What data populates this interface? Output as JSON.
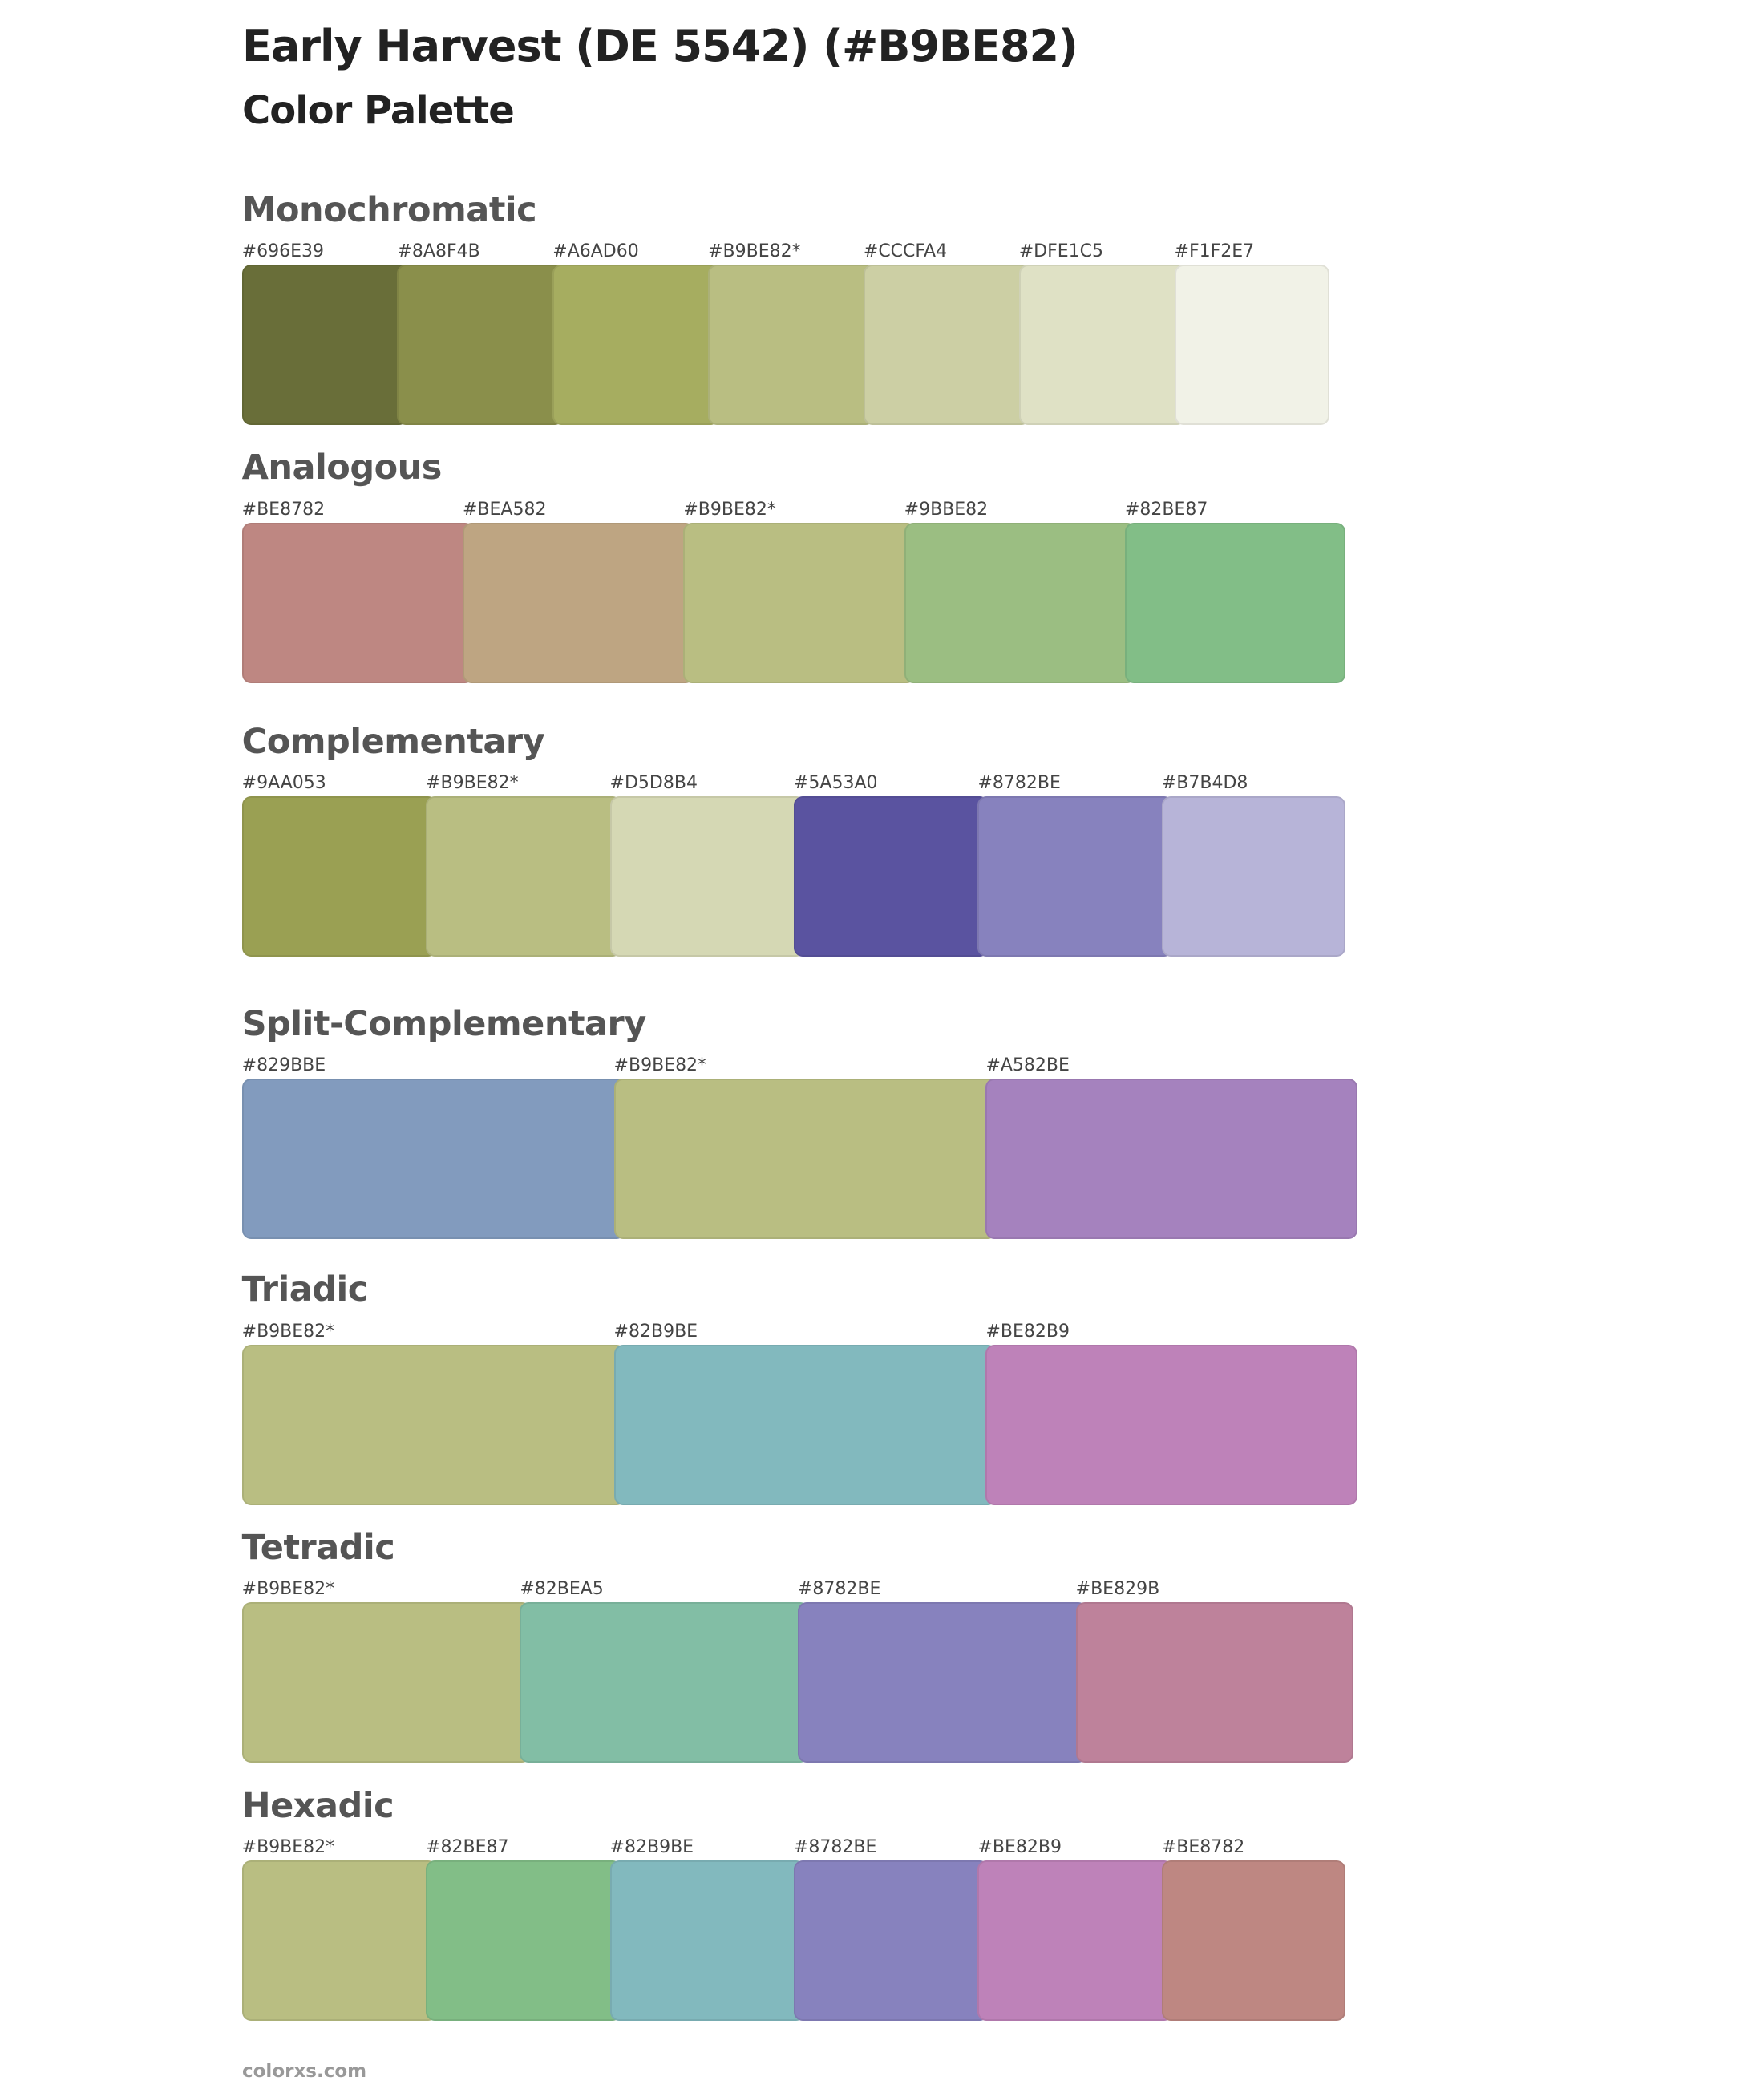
{
  "header": {
    "title": "Early Harvest (DE 5542) (#B9BE82)",
    "subtitle": "Color Palette"
  },
  "sections": [
    {
      "name": "Monochromatic",
      "swatches": [
        {
          "label": "#696E39",
          "color": "#696E39"
        },
        {
          "label": "#8A8F4B",
          "color": "#8A8F4B"
        },
        {
          "label": "#A6AD60",
          "color": "#A6AD60"
        },
        {
          "label": "#B9BE82*",
          "color": "#B9BE82"
        },
        {
          "label": "#CCCFA4",
          "color": "#CCCFA4"
        },
        {
          "label": "#DFE1C5",
          "color": "#DFE1C5"
        },
        {
          "label": "#F1F2E7",
          "color": "#F1F2E7"
        }
      ]
    },
    {
      "name": "Analogous",
      "swatches": [
        {
          "label": "#BE8782",
          "color": "#BE8782"
        },
        {
          "label": "#BEA582",
          "color": "#BEA582"
        },
        {
          "label": "#B9BE82*",
          "color": "#B9BE82"
        },
        {
          "label": "#9BBE82",
          "color": "#9BBE82"
        },
        {
          "label": "#82BE87",
          "color": "#82BE87"
        }
      ]
    },
    {
      "name": "Complementary",
      "swatches": [
        {
          "label": "#9AA053",
          "color": "#9AA053"
        },
        {
          "label": "#B9BE82*",
          "color": "#B9BE82"
        },
        {
          "label": "#D5D8B4",
          "color": "#D5D8B4"
        },
        {
          "label": "#5A53A0",
          "color": "#5A53A0"
        },
        {
          "label": "#8782BE",
          "color": "#8782BE"
        },
        {
          "label": "#B7B4D8",
          "color": "#B7B4D8"
        }
      ]
    },
    {
      "name": "Split-Complementary",
      "swatches": [
        {
          "label": "#829BBE",
          "color": "#829BBE"
        },
        {
          "label": "#B9BE82*",
          "color": "#B9BE82"
        },
        {
          "label": "#A582BE",
          "color": "#A582BE"
        }
      ]
    },
    {
      "name": "Triadic",
      "swatches": [
        {
          "label": "#B9BE82*",
          "color": "#B9BE82"
        },
        {
          "label": "#82B9BE",
          "color": "#82B9BE"
        },
        {
          "label": "#BE82B9",
          "color": "#BE82B9"
        }
      ]
    },
    {
      "name": "Tetradic",
      "swatches": [
        {
          "label": "#B9BE82*",
          "color": "#B9BE82"
        },
        {
          "label": "#82BEA5",
          "color": "#82BEA5"
        },
        {
          "label": "#8782BE",
          "color": "#8782BE"
        },
        {
          "label": "#BE829B",
          "color": "#BE829B"
        }
      ]
    },
    {
      "name": "Hexadic",
      "swatches": [
        {
          "label": "#B9BE82*",
          "color": "#B9BE82"
        },
        {
          "label": "#82BE87",
          "color": "#82BE87"
        },
        {
          "label": "#82B9BE",
          "color": "#82B9BE"
        },
        {
          "label": "#8782BE",
          "color": "#8782BE"
        },
        {
          "label": "#BE82B9",
          "color": "#BE82B9"
        },
        {
          "label": "#BE8782",
          "color": "#BE8782"
        }
      ]
    }
  ],
  "footer": "colorxs.com"
}
